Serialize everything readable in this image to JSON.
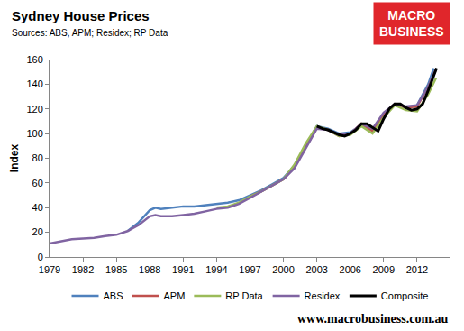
{
  "chart_data": {
    "type": "line",
    "title": "Sydney House Prices",
    "subtitle": "Sources: ABS, APM; Residex; RP Data",
    "y_label": "Index",
    "annotations": [
      "www.macrobusiness.com.au"
    ],
    "logo_text": [
      "MACRO",
      "BUSINESS"
    ],
    "xlim": [
      1979,
      2015
    ],
    "xticks": [
      1979,
      1982,
      1985,
      1988,
      1991,
      1994,
      1997,
      2000,
      2003,
      2006,
      2009,
      2012
    ],
    "ylim": [
      0,
      160
    ],
    "yticks": [
      0,
      20,
      40,
      60,
      80,
      100,
      120,
      140,
      160
    ],
    "grid": false,
    "legend": "bottom",
    "series": [
      {
        "name": "ABS",
        "color": "#4f81bd",
        "x": [
          1986,
          1987,
          1988,
          1988.5,
          1989,
          1990,
          1991,
          1992,
          1993,
          1994,
          1995,
          1996,
          1997,
          1998,
          1999,
          2000,
          2001,
          2002,
          2003,
          2004,
          2005,
          2006,
          2007,
          2008,
          2009,
          2010,
          2011,
          2012,
          2013,
          2013.5
        ],
        "values": [
          21,
          28,
          38,
          40,
          39,
          40,
          41,
          41,
          42,
          43,
          44,
          46,
          50,
          54,
          59,
          64,
          74,
          90,
          106,
          104,
          100,
          101,
          107,
          103,
          115,
          124,
          121,
          123,
          140,
          153
        ]
      },
      {
        "name": "APM",
        "color": "#c0504d",
        "x": [
          1997,
          1998,
          1999,
          2000,
          2001,
          2002,
          2003,
          2004,
          2005,
          2006,
          2007,
          2008,
          2009,
          2010,
          2011,
          2012,
          2013,
          2013.7
        ],
        "values": [
          49,
          53,
          58,
          63,
          73,
          89,
          105,
          103,
          98,
          100,
          108,
          102,
          116,
          124,
          121,
          122,
          138,
          152
        ]
      },
      {
        "name": "RP Data",
        "color": "#9bbb59",
        "x": [
          1994,
          1995,
          1996,
          1997,
          1998,
          1999,
          2000,
          2001,
          2002,
          2003,
          2004,
          2005,
          2006,
          2007,
          2008,
          2009,
          2010,
          2011,
          2012,
          2013,
          2013.7
        ],
        "values": [
          40,
          41,
          44,
          49,
          53,
          58,
          63,
          75,
          92,
          106,
          103,
          98,
          99,
          106,
          100,
          113,
          123,
          119,
          118,
          132,
          145
        ]
      },
      {
        "name": "Residex",
        "color": "#8064a2",
        "x": [
          1979,
          1980,
          1981,
          1982,
          1983,
          1984,
          1985,
          1986,
          1987,
          1988,
          1988.5,
          1989,
          1990,
          1991,
          1992,
          1993,
          1994,
          1995,
          1996,
          1997,
          1998,
          1999,
          2000,
          2001,
          2002,
          2003,
          2004,
          2005,
          2006,
          2007,
          2008,
          2009,
          2010,
          2011,
          2012,
          2013,
          2013.7
        ],
        "values": [
          11,
          13,
          14.5,
          15,
          15.5,
          17,
          18,
          21,
          26,
          33,
          34,
          33,
          33,
          34,
          35,
          37,
          39,
          40,
          43,
          48,
          53,
          58,
          63,
          72,
          88,
          104,
          103,
          99,
          100,
          108,
          104,
          117,
          124,
          122,
          123,
          138,
          152
        ]
      },
      {
        "name": "Composite",
        "color": "#000000",
        "x": [
          2003,
          2003.5,
          2004,
          2005,
          2005.5,
          2006,
          2006.5,
          2007,
          2007.5,
          2008,
          2008.5,
          2009,
          2009.5,
          2010,
          2010.5,
          2011,
          2011.5,
          2012,
          2012.5,
          2013,
          2013.5,
          2013.75
        ],
        "values": [
          106,
          104,
          103,
          99,
          98,
          100,
          103,
          108,
          108,
          105,
          102,
          112,
          120,
          124,
          124,
          121,
          119,
          120,
          124,
          135,
          147,
          153
        ]
      }
    ]
  }
}
